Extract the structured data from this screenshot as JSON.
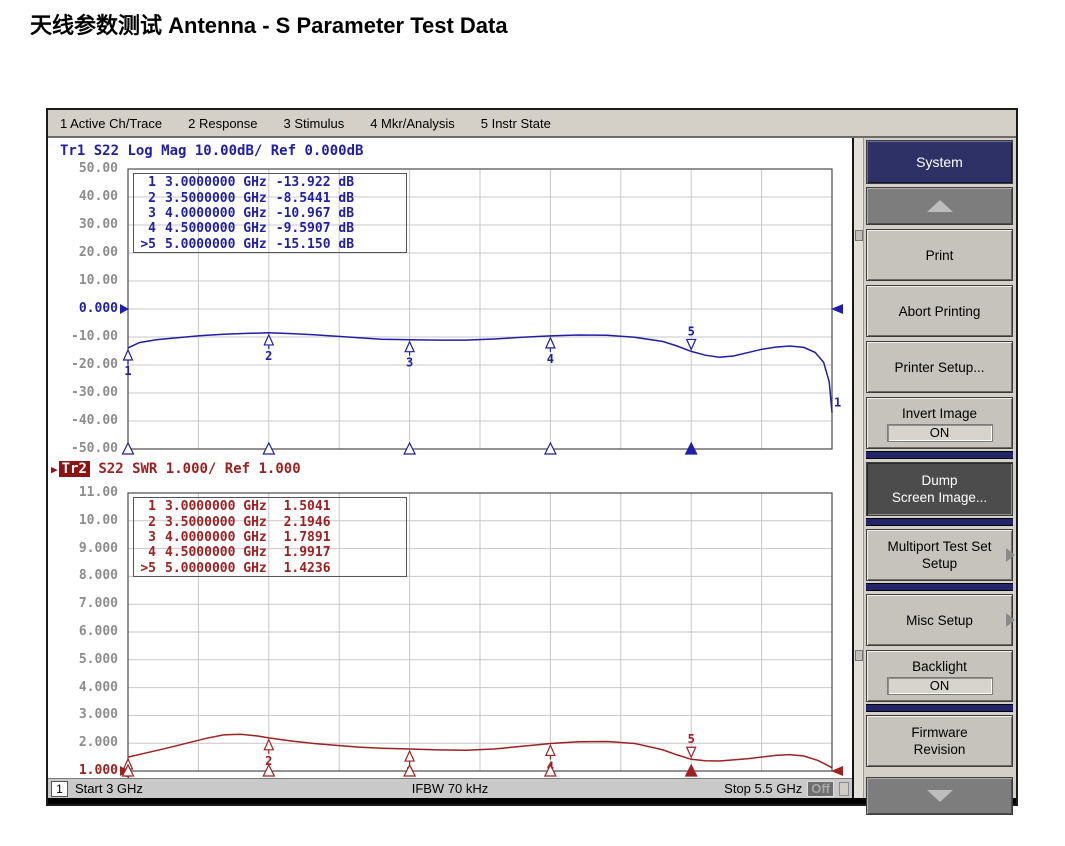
{
  "page_title": "天线参数测试 Antenna - S Parameter Test Data",
  "menu_bar": {
    "items": [
      "1 Active Ch/Trace",
      "2 Response",
      "3 Stimulus",
      "4 Mkr/Analysis",
      "5 Instr State"
    ]
  },
  "display": {
    "tr1": {
      "header_label": "Tr1",
      "header_rest": " S22 Log Mag 10.00dB/ Ref 0.000dB",
      "marker_rows": [
        {
          "sel": "",
          "n": "1",
          "freq": "3.0000000 GHz",
          "value": "-13.922 dB"
        },
        {
          "sel": "",
          "n": "2",
          "freq": "3.5000000 GHz",
          "value": "-8.5441 dB"
        },
        {
          "sel": "",
          "n": "3",
          "freq": "4.0000000 GHz",
          "value": "-10.967 dB"
        },
        {
          "sel": "",
          "n": "4",
          "freq": "4.5000000 GHz",
          "value": "-9.5907 dB"
        },
        {
          "sel": ">",
          "n": "5",
          "freq": "5.0000000 GHz",
          "value": "-15.150 dB"
        }
      ]
    },
    "tr2": {
      "header_label": "Tr2",
      "header_rest": " S22 SWR 1.000/ Ref 1.000",
      "active": true,
      "marker_rows": [
        {
          "sel": "",
          "n": "1",
          "freq": "3.0000000 GHz",
          "value": " 1.5041"
        },
        {
          "sel": "",
          "n": "2",
          "freq": "3.5000000 GHz",
          "value": " 2.1946"
        },
        {
          "sel": "",
          "n": "3",
          "freq": "4.0000000 GHz",
          "value": " 1.7891"
        },
        {
          "sel": "",
          "n": "4",
          "freq": "4.5000000 GHz",
          "value": " 1.9917"
        },
        {
          "sel": ">",
          "n": "5",
          "freq": "5.0000000 GHz",
          "value": " 1.4236"
        }
      ]
    }
  },
  "chart_data": [
    {
      "id": "tr1-s22-log-mag",
      "type": "line",
      "title": "Tr1 S22 Log Mag 10.00dB/ Ref 0.000dB",
      "trace": "Tr1",
      "parameter": "S22",
      "format": "Log Mag",
      "scale_per_division": "10.00dB",
      "reference_value": 0,
      "color": "#1e1ea8",
      "x_unit": "GHz",
      "x_range": [
        3.0,
        5.5
      ],
      "x_divisions": 10,
      "y_unit": "dB",
      "y_range": [
        -50,
        50
      ],
      "y_divisions": 10,
      "y_tick_labels": [
        "50.00",
        "40.00",
        "30.00",
        "20.00",
        "10.00",
        "0.000",
        "-10.00",
        "-20.00",
        "-30.00",
        "-40.00",
        "-50.00"
      ],
      "ref_tick_index": 5,
      "grid": true,
      "trace_end_label": "1",
      "active_marker": 5,
      "markers": [
        {
          "n": 1,
          "freq_ghz": 3.0,
          "value": -13.922,
          "active": false
        },
        {
          "n": 2,
          "freq_ghz": 3.5,
          "value": -8.5441,
          "active": false
        },
        {
          "n": 3,
          "freq_ghz": 4.0,
          "value": -10.967,
          "active": false
        },
        {
          "n": 4,
          "freq_ghz": 4.5,
          "value": -9.5907,
          "active": false
        },
        {
          "n": 5,
          "freq_ghz": 5.0,
          "value": -15.15,
          "active": true
        }
      ],
      "points": [
        [
          3.0,
          -13.9
        ],
        [
          3.04,
          -12.0
        ],
        [
          3.1,
          -11.0
        ],
        [
          3.18,
          -10.2
        ],
        [
          3.26,
          -9.5
        ],
        [
          3.34,
          -9.0
        ],
        [
          3.42,
          -8.7
        ],
        [
          3.5,
          -8.5
        ],
        [
          3.58,
          -8.8
        ],
        [
          3.66,
          -9.2
        ],
        [
          3.74,
          -9.7
        ],
        [
          3.82,
          -10.3
        ],
        [
          3.9,
          -10.8
        ],
        [
          4.0,
          -11.0
        ],
        [
          4.1,
          -11.1
        ],
        [
          4.2,
          -11.1
        ],
        [
          4.3,
          -10.7
        ],
        [
          4.4,
          -10.1
        ],
        [
          4.5,
          -9.6
        ],
        [
          4.6,
          -9.3
        ],
        [
          4.7,
          -9.4
        ],
        [
          4.8,
          -10.1
        ],
        [
          4.9,
          -11.6
        ],
        [
          4.95,
          -13.2
        ],
        [
          5.0,
          -15.15
        ],
        [
          5.05,
          -16.5
        ],
        [
          5.1,
          -17.2
        ],
        [
          5.15,
          -16.8
        ],
        [
          5.2,
          -15.6
        ],
        [
          5.25,
          -14.4
        ],
        [
          5.3,
          -13.6
        ],
        [
          5.35,
          -13.2
        ],
        [
          5.4,
          -13.7
        ],
        [
          5.44,
          -15.5
        ],
        [
          5.47,
          -19.0
        ],
        [
          5.49,
          -26.0
        ],
        [
          5.5,
          -37.0
        ]
      ]
    },
    {
      "id": "tr2-s22-swr",
      "type": "line",
      "title": "Tr2 S22 SWR 1.000/ Ref 1.000",
      "trace": "Tr2",
      "parameter": "S22",
      "format": "SWR",
      "scale_per_division": "1.000",
      "reference_value": 1.0,
      "color": "#a02020",
      "x_unit": "GHz",
      "x_range": [
        3.0,
        5.5
      ],
      "x_divisions": 10,
      "y_unit": "",
      "y_range": [
        1,
        11
      ],
      "y_divisions": 10,
      "y_tick_labels": [
        "11.00",
        "10.00",
        "9.000",
        "8.000",
        "7.000",
        "6.000",
        "5.000",
        "4.000",
        "3.000",
        "2.000",
        "1.000"
      ],
      "ref_tick_index": 10,
      "grid": true,
      "active_marker": 5,
      "markers": [
        {
          "n": 1,
          "freq_ghz": 3.0,
          "value": 1.5041,
          "active": false
        },
        {
          "n": 2,
          "freq_ghz": 3.5,
          "value": 2.1946,
          "active": false
        },
        {
          "n": 3,
          "freq_ghz": 4.0,
          "value": 1.7891,
          "active": false
        },
        {
          "n": 4,
          "freq_ghz": 4.5,
          "value": 1.9917,
          "active": false
        },
        {
          "n": 5,
          "freq_ghz": 5.0,
          "value": 1.4236,
          "active": true
        }
      ],
      "points": [
        [
          3.0,
          1.5
        ],
        [
          3.06,
          1.64
        ],
        [
          3.12,
          1.78
        ],
        [
          3.2,
          1.98
        ],
        [
          3.28,
          2.18
        ],
        [
          3.34,
          2.3
        ],
        [
          3.4,
          2.32
        ],
        [
          3.46,
          2.26
        ],
        [
          3.5,
          2.19
        ],
        [
          3.58,
          2.08
        ],
        [
          3.66,
          1.99
        ],
        [
          3.74,
          1.92
        ],
        [
          3.82,
          1.86
        ],
        [
          3.9,
          1.82
        ],
        [
          4.0,
          1.79
        ],
        [
          4.1,
          1.76
        ],
        [
          4.2,
          1.75
        ],
        [
          4.3,
          1.79
        ],
        [
          4.4,
          1.89
        ],
        [
          4.5,
          1.99
        ],
        [
          4.6,
          2.05
        ],
        [
          4.7,
          2.06
        ],
        [
          4.8,
          1.99
        ],
        [
          4.9,
          1.76
        ],
        [
          4.95,
          1.58
        ],
        [
          5.0,
          1.42
        ],
        [
          5.05,
          1.37
        ],
        [
          5.1,
          1.36
        ],
        [
          5.2,
          1.44
        ],
        [
          5.3,
          1.56
        ],
        [
          5.35,
          1.59
        ],
        [
          5.4,
          1.54
        ],
        [
          5.45,
          1.38
        ],
        [
          5.5,
          1.12
        ]
      ]
    }
  ],
  "softkeys": {
    "title": "System",
    "items": [
      {
        "kind": "scroll",
        "dir": "up",
        "name": "scroll-up"
      },
      {
        "kind": "button",
        "lines": [
          "Print"
        ],
        "name": "print"
      },
      {
        "kind": "button",
        "lines": [
          "Abort Printing"
        ],
        "name": "abort-printing"
      },
      {
        "kind": "button",
        "lines": [
          "Printer Setup..."
        ],
        "name": "printer-setup"
      },
      {
        "kind": "button",
        "lines": [
          "Invert Image"
        ],
        "toggle": "ON",
        "name": "invert-image",
        "tight": true
      },
      {
        "kind": "separator"
      },
      {
        "kind": "button",
        "lines": [
          "Dump",
          "Screen Image..."
        ],
        "active": true,
        "name": "dump-screen-image"
      },
      {
        "kind": "separator"
      },
      {
        "kind": "button",
        "lines": [
          "Multiport Test Set",
          "Setup"
        ],
        "submenu": true,
        "name": "multiport-test-set-setup",
        "tight": true
      },
      {
        "kind": "separator"
      },
      {
        "kind": "button",
        "lines": [
          "Misc Setup"
        ],
        "submenu": true,
        "name": "misc-setup"
      },
      {
        "kind": "button",
        "lines": [
          "Backlight"
        ],
        "toggle": "ON",
        "name": "backlight",
        "tight": true
      },
      {
        "kind": "separator"
      },
      {
        "kind": "button",
        "lines": [
          "Firmware",
          "Revision"
        ],
        "name": "firmware-revision"
      },
      {
        "kind": "scroll",
        "dir": "down",
        "name": "scroll-down"
      }
    ]
  },
  "status_bar": {
    "channel": "1",
    "start": "Start 3 GHz",
    "ifbw": "IFBW 70 kHz",
    "stop": "Stop 5.5 GHz",
    "off": "Off"
  }
}
